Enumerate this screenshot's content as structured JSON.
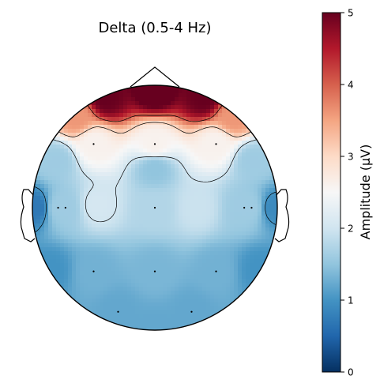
{
  "chart_data": {
    "type": "heatmap",
    "title": "Delta (0.5-4 Hz)",
    "colorbar": {
      "label": "Amplitude (µV)",
      "range": [
        0,
        5
      ],
      "ticks": [
        "0",
        "1",
        "2",
        "3",
        "4",
        "5"
      ],
      "colormap": "RdBu_r",
      "stops": [
        "#053061",
        "#2166ac",
        "#4393c3",
        "#92c5de",
        "#d1e5f0",
        "#f7f7f7",
        "#fddbc7",
        "#f4a582",
        "#d6604d",
        "#b2182b",
        "#67001f"
      ]
    },
    "contour_levels": [
      1,
      2,
      3,
      4
    ],
    "sensors": [
      {
        "x": -0.5,
        "y": 0.52,
        "v": 2.6
      },
      {
        "x": 0.0,
        "y": 0.52,
        "v": 2.6
      },
      {
        "x": 0.5,
        "y": 0.52,
        "v": 2.6
      },
      {
        "x": -0.4,
        "y": 0.9,
        "v": 5.0
      },
      {
        "x": 0.0,
        "y": 0.97,
        "v": 5.2
      },
      {
        "x": 0.4,
        "y": 0.9,
        "v": 5.0
      },
      {
        "x": -0.64,
        "y": 0.74,
        "v": 3.6
      },
      {
        "x": 0.64,
        "y": 0.74,
        "v": 3.6
      },
      {
        "x": -0.8,
        "y": 0.38,
        "v": 1.6
      },
      {
        "x": 0.8,
        "y": 0.38,
        "v": 1.6
      },
      {
        "x": -0.78,
        "y": 0.0,
        "v": 1.6
      },
      {
        "x": -0.73,
        "y": 0.0,
        "v": 1.6
      },
      {
        "x": 0.73,
        "y": 0.0,
        "v": 1.6
      },
      {
        "x": 0.78,
        "y": 0.0,
        "v": 1.6
      },
      {
        "x": -0.97,
        "y": 0.0,
        "v": 0.7
      },
      {
        "x": 0.97,
        "y": 0.0,
        "v": 0.9
      },
      {
        "x": -0.48,
        "y": 0.02,
        "v": 2.05
      },
      {
        "x": 0.0,
        "y": 0.32,
        "v": 1.5
      },
      {
        "x": 0.0,
        "y": 0.0,
        "v": 1.75
      },
      {
        "x": 0.35,
        "y": 0.0,
        "v": 1.95
      },
      {
        "x": -0.5,
        "y": -0.52,
        "v": 1.3
      },
      {
        "x": 0.0,
        "y": -0.52,
        "v": 1.35
      },
      {
        "x": 0.5,
        "y": -0.52,
        "v": 1.3
      },
      {
        "x": -0.3,
        "y": -0.85,
        "v": 1.2
      },
      {
        "x": 0.3,
        "y": -0.85,
        "v": 1.2
      },
      {
        "x": -0.85,
        "y": -0.5,
        "v": 1.0
      },
      {
        "x": 0.85,
        "y": -0.5,
        "v": 1.0
      },
      {
        "x": 0.0,
        "y": -0.99,
        "v": 1.2
      }
    ],
    "electrodes": [
      {
        "x": -0.5,
        "y": 0.52
      },
      {
        "x": 0.0,
        "y": 0.52
      },
      {
        "x": 0.5,
        "y": 0.52
      },
      {
        "x": -0.79,
        "y": 0.0
      },
      {
        "x": -0.73,
        "y": 0.0
      },
      {
        "x": 0.0,
        "y": 0.0
      },
      {
        "x": 0.73,
        "y": 0.0
      },
      {
        "x": 0.79,
        "y": 0.0
      },
      {
        "x": -0.5,
        "y": -0.52
      },
      {
        "x": 0.0,
        "y": -0.52
      },
      {
        "x": 0.5,
        "y": -0.52
      },
      {
        "x": -0.3,
        "y": -0.85
      },
      {
        "x": 0.3,
        "y": -0.85
      }
    ]
  }
}
